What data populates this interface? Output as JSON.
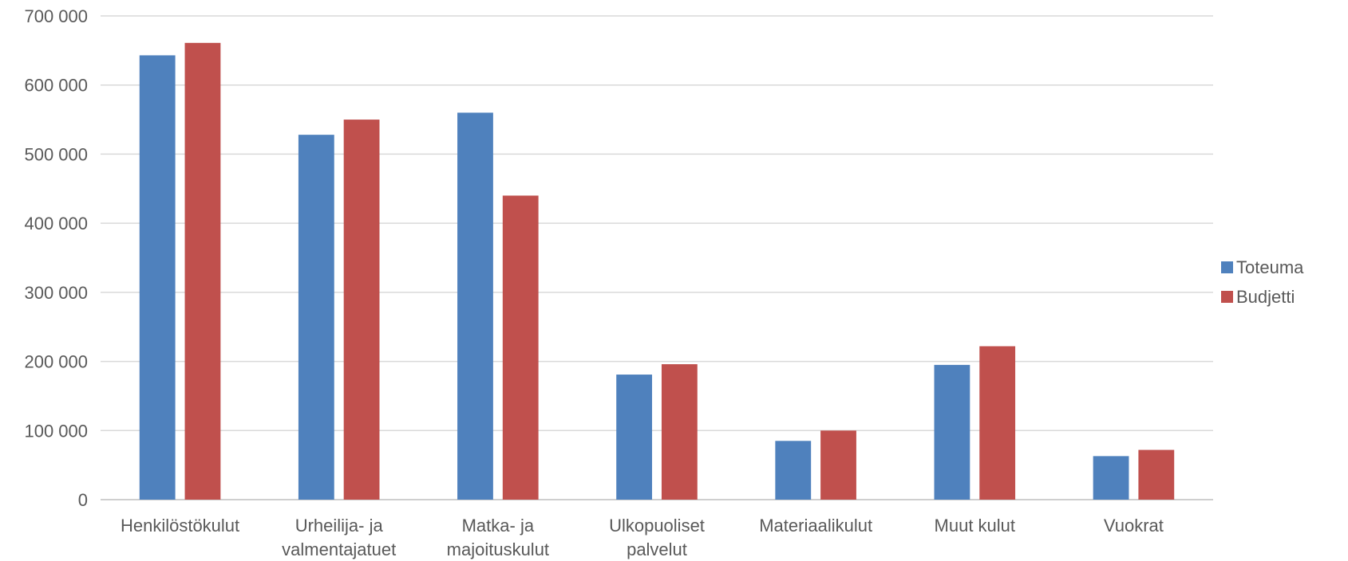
{
  "chart_data": {
    "type": "bar",
    "categories": [
      [
        "Henkilöstökulut"
      ],
      [
        "Urheilija- ja",
        "valmentajatuet"
      ],
      [
        "Matka- ja",
        "majoituskulut"
      ],
      [
        "Ulkopuoliset",
        "palvelut"
      ],
      [
        "Materiaalikulut"
      ],
      [
        "Muut kulut"
      ],
      [
        "Vuokrat"
      ]
    ],
    "series": [
      {
        "name": "Toteuma",
        "color": "#4F81BD",
        "values": [
          643000,
          528000,
          560000,
          181000,
          85000,
          195000,
          63000
        ]
      },
      {
        "name": "Budjetti",
        "color": "#C0504D",
        "values": [
          661000,
          550000,
          440000,
          196000,
          100000,
          222000,
          72000
        ]
      }
    ],
    "yticks": [
      "0",
      "100 000",
      "200 000",
      "300 000",
      "400 000",
      "500 000",
      "600 000",
      "700 000"
    ],
    "ylim": [
      0,
      700000
    ],
    "grid": true,
    "legend_position": "right",
    "title": "",
    "xlabel": "",
    "ylabel": ""
  }
}
